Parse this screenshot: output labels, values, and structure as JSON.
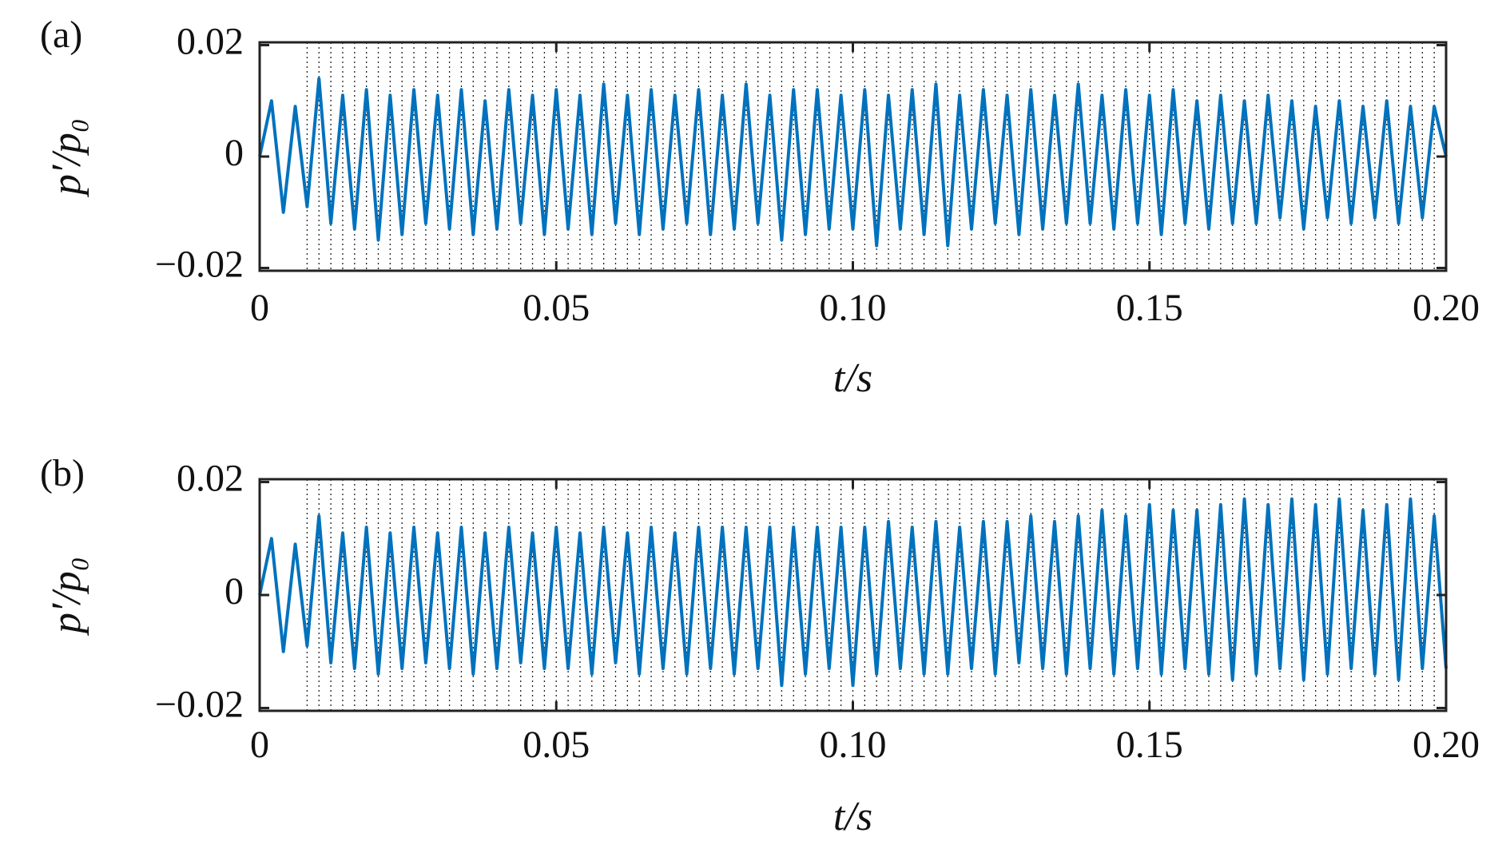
{
  "chart_data": [
    {
      "type": "line",
      "panel_label": "(a)",
      "xlabel": "t/s",
      "ylabel": "p′/p₀",
      "xlim": [
        0,
        0.2
      ],
      "ylim": [
        -0.0205,
        0.0205
      ],
      "xticks": [
        0,
        0.05,
        {
          "value": 0.1,
          "label": "0.10"
        },
        0.15,
        {
          "value": 0.2,
          "label": "0.20"
        }
      ],
      "yticks": [
        {
          "value": -0.02,
          "label": "−0.02"
        },
        0,
        0.02
      ],
      "x": [
        0,
        0.002,
        0.004,
        0.006,
        0.008,
        0.01,
        0.012,
        0.014,
        0.016,
        0.018,
        0.02,
        0.022,
        0.024,
        0.026,
        0.028,
        0.03,
        0.032,
        0.034,
        0.036,
        0.038,
        0.04,
        0.042,
        0.044,
        0.046,
        0.048,
        0.05,
        0.052,
        0.054,
        0.056,
        0.058,
        0.06,
        0.062,
        0.064,
        0.066,
        0.068,
        0.07,
        0.072,
        0.074,
        0.076,
        0.078,
        0.08,
        0.082,
        0.084,
        0.086,
        0.088,
        0.09,
        0.092,
        0.094,
        0.096,
        0.098,
        0.1,
        0.102,
        0.104,
        0.106,
        0.108,
        0.11,
        0.112,
        0.114,
        0.116,
        0.118,
        0.12,
        0.122,
        0.124,
        0.126,
        0.128,
        0.13,
        0.132,
        0.134,
        0.136,
        0.138,
        0.14,
        0.142,
        0.144,
        0.146,
        0.148,
        0.15,
        0.152,
        0.154,
        0.156,
        0.158,
        0.16,
        0.162,
        0.164,
        0.166,
        0.168,
        0.17,
        0.172,
        0.174,
        0.176,
        0.178,
        0.18,
        0.182,
        0.184,
        0.186,
        0.188,
        0.19,
        0.192,
        0.194,
        0.196,
        0.198,
        0.2
      ],
      "series": [
        {
          "color": "#0072bd",
          "values": [
            0,
            0.01,
            -0.01,
            0.009,
            -0.009,
            0.014,
            -0.012,
            0.011,
            -0.013,
            0.012,
            -0.015,
            0.011,
            -0.014,
            0.012,
            -0.012,
            0.011,
            -0.013,
            0.012,
            -0.014,
            0.01,
            -0.013,
            0.012,
            -0.012,
            0.011,
            -0.014,
            0.012,
            -0.013,
            0.011,
            -0.014,
            0.013,
            -0.012,
            0.011,
            -0.014,
            0.012,
            -0.013,
            0.011,
            -0.012,
            0.012,
            -0.014,
            0.011,
            -0.013,
            0.013,
            -0.012,
            0.011,
            -0.015,
            0.012,
            -0.014,
            0.012,
            -0.013,
            0.011,
            -0.013,
            0.012,
            -0.016,
            0.011,
            -0.013,
            0.012,
            -0.014,
            0.013,
            -0.016,
            0.011,
            -0.013,
            0.012,
            -0.012,
            0.011,
            -0.014,
            0.012,
            -0.013,
            0.011,
            -0.012,
            0.013,
            -0.012,
            0.011,
            -0.013,
            0.012,
            -0.012,
            0.011,
            -0.014,
            0.012,
            -0.012,
            0.01,
            -0.013,
            0.011,
            -0.012,
            0.01,
            -0.012,
            0.011,
            -0.011,
            0.01,
            -0.013,
            0.009,
            -0.011,
            0.01,
            -0.012,
            0.009,
            -0.011,
            0.01,
            -0.012,
            0.009,
            -0.011,
            0.009,
            0
          ]
        }
      ],
      "vlines": [
        0.008,
        0.01,
        0.012,
        0.014,
        0.016,
        0.018,
        0.02,
        0.022,
        0.024,
        0.026,
        0.028,
        0.03,
        0.032,
        0.034,
        0.036,
        0.038,
        0.04,
        0.042,
        0.044,
        0.046,
        0.048,
        0.05,
        0.052,
        0.054,
        0.056,
        0.058,
        0.06,
        0.062,
        0.064,
        0.066,
        0.068,
        0.07,
        0.072,
        0.074,
        0.076,
        0.078,
        0.08,
        0.082,
        0.084,
        0.086,
        0.088,
        0.09,
        0.092,
        0.094,
        0.096,
        0.098,
        0.1,
        0.102,
        0.104,
        0.106,
        0.108,
        0.11,
        0.112,
        0.114,
        0.116,
        0.118,
        0.12,
        0.122,
        0.124,
        0.126,
        0.128,
        0.13,
        0.132,
        0.134,
        0.136,
        0.138,
        0.14,
        0.142,
        0.144,
        0.146,
        0.148,
        0.15,
        0.152,
        0.154,
        0.156,
        0.158,
        0.16,
        0.162,
        0.164,
        0.166,
        0.168,
        0.17,
        0.172,
        0.174,
        0.176,
        0.178,
        0.18,
        0.182,
        0.184,
        0.186,
        0.188,
        0.19,
        0.192,
        0.194,
        0.196,
        0.198,
        0.2
      ]
    },
    {
      "type": "line",
      "panel_label": "(b)",
      "xlabel": "t/s",
      "ylabel": "p′/p₀",
      "xlim": [
        0,
        0.2
      ],
      "ylim": [
        -0.0205,
        0.0205
      ],
      "xticks": [
        0,
        0.05,
        {
          "value": 0.1,
          "label": "0.10"
        },
        0.15,
        {
          "value": 0.2,
          "label": "0.20"
        }
      ],
      "yticks": [
        {
          "value": -0.02,
          "label": "−0.02"
        },
        0,
        0.02
      ],
      "x": [
        0,
        0.002,
        0.004,
        0.006,
        0.008,
        0.01,
        0.012,
        0.014,
        0.016,
        0.018,
        0.02,
        0.022,
        0.024,
        0.026,
        0.028,
        0.03,
        0.032,
        0.034,
        0.036,
        0.038,
        0.04,
        0.042,
        0.044,
        0.046,
        0.048,
        0.05,
        0.052,
        0.054,
        0.056,
        0.058,
        0.06,
        0.062,
        0.064,
        0.066,
        0.068,
        0.07,
        0.072,
        0.074,
        0.076,
        0.078,
        0.08,
        0.082,
        0.084,
        0.086,
        0.088,
        0.09,
        0.092,
        0.094,
        0.096,
        0.098,
        0.1,
        0.102,
        0.104,
        0.106,
        0.108,
        0.11,
        0.112,
        0.114,
        0.116,
        0.118,
        0.12,
        0.122,
        0.124,
        0.126,
        0.128,
        0.13,
        0.132,
        0.134,
        0.136,
        0.138,
        0.14,
        0.142,
        0.144,
        0.146,
        0.148,
        0.15,
        0.152,
        0.154,
        0.156,
        0.158,
        0.16,
        0.162,
        0.164,
        0.166,
        0.168,
        0.17,
        0.172,
        0.174,
        0.176,
        0.178,
        0.18,
        0.182,
        0.184,
        0.186,
        0.188,
        0.19,
        0.192,
        0.194,
        0.196,
        0.198,
        0.2
      ],
      "series": [
        {
          "color": "#0072bd",
          "values": [
            0,
            0.01,
            -0.01,
            0.009,
            -0.009,
            0.014,
            -0.012,
            0.011,
            -0.013,
            0.012,
            -0.014,
            0.011,
            -0.013,
            0.012,
            -0.012,
            0.011,
            -0.013,
            0.012,
            -0.014,
            0.011,
            -0.013,
            0.012,
            -0.012,
            0.011,
            -0.013,
            0.012,
            -0.013,
            0.011,
            -0.014,
            0.012,
            -0.012,
            0.011,
            -0.014,
            0.012,
            -0.013,
            0.011,
            -0.014,
            0.012,
            -0.013,
            0.012,
            -0.014,
            0.012,
            -0.013,
            0.012,
            -0.016,
            0.012,
            -0.014,
            0.012,
            -0.013,
            0.012,
            -0.016,
            0.012,
            -0.014,
            0.013,
            -0.013,
            0.012,
            -0.014,
            0.013,
            -0.014,
            0.012,
            -0.013,
            0.013,
            -0.014,
            0.013,
            -0.012,
            0.014,
            -0.013,
            0.013,
            -0.014,
            0.014,
            -0.013,
            0.015,
            -0.014,
            0.014,
            -0.013,
            0.016,
            -0.014,
            0.015,
            -0.013,
            0.015,
            -0.014,
            0.016,
            -0.015,
            0.017,
            -0.014,
            0.016,
            -0.013,
            0.017,
            -0.015,
            0.016,
            -0.014,
            0.017,
            -0.013,
            0.015,
            -0.014,
            0.016,
            -0.015,
            0.017,
            -0.013,
            0.014,
            -0.013
          ]
        }
      ],
      "vlines": [
        0.008,
        0.01,
        0.012,
        0.014,
        0.016,
        0.018,
        0.02,
        0.022,
        0.024,
        0.026,
        0.028,
        0.03,
        0.032,
        0.034,
        0.036,
        0.038,
        0.04,
        0.042,
        0.044,
        0.046,
        0.048,
        0.05,
        0.052,
        0.054,
        0.056,
        0.058,
        0.06,
        0.062,
        0.064,
        0.066,
        0.068,
        0.07,
        0.072,
        0.074,
        0.076,
        0.078,
        0.08,
        0.082,
        0.084,
        0.086,
        0.088,
        0.09,
        0.092,
        0.094,
        0.096,
        0.098,
        0.1,
        0.102,
        0.104,
        0.106,
        0.108,
        0.11,
        0.112,
        0.114,
        0.116,
        0.118,
        0.12,
        0.122,
        0.124,
        0.126,
        0.128,
        0.13,
        0.132,
        0.134,
        0.136,
        0.138,
        0.14,
        0.142,
        0.144,
        0.146,
        0.148,
        0.15,
        0.152,
        0.154,
        0.156,
        0.158,
        0.16,
        0.162,
        0.164,
        0.166,
        0.168,
        0.17,
        0.172,
        0.174,
        0.176,
        0.178,
        0.18,
        0.182,
        0.184,
        0.186,
        0.188,
        0.19,
        0.192,
        0.194,
        0.196,
        0.198,
        0.2
      ]
    }
  ]
}
